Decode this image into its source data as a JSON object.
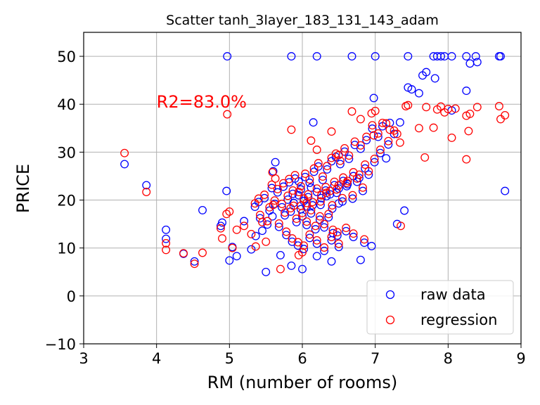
{
  "chart_data": {
    "type": "scatter",
    "title": "Scatter tanh_3layer_183_131_143_adam",
    "xlabel": "RM (number of rooms)",
    "ylabel": "PRICE",
    "xlim": [
      3,
      9
    ],
    "ylim": [
      -10,
      55
    ],
    "xticks": [
      3,
      4,
      5,
      6,
      7,
      8,
      9
    ],
    "yticks": [
      -10,
      0,
      10,
      20,
      30,
      40,
      50
    ],
    "grid": true,
    "legend_position": "bottom-right",
    "annotation": {
      "text": "R2=83.0%",
      "x": 4.0,
      "y": 40.5,
      "color": "#ff0000"
    },
    "series": [
      {
        "name": "raw data",
        "color": "#0000ff",
        "marker": "hollow-circle",
        "points": [
          [
            3.56,
            27.5
          ],
          [
            3.86,
            23.1
          ],
          [
            4.13,
            13.8
          ],
          [
            4.13,
            11.9
          ],
          [
            4.37,
            8.8
          ],
          [
            4.52,
            7.2
          ],
          [
            4.63,
            17.9
          ],
          [
            4.88,
            14.6
          ],
          [
            4.9,
            15.3
          ],
          [
            4.96,
            21.9
          ],
          [
            4.97,
            50.0
          ],
          [
            5.0,
            7.4
          ],
          [
            5.04,
            10.2
          ],
          [
            5.1,
            8.3
          ],
          [
            5.2,
            15.6
          ],
          [
            5.3,
            9.7
          ],
          [
            5.36,
            12.5
          ],
          [
            5.4,
            19.6
          ],
          [
            5.45,
            13.6
          ],
          [
            5.5,
            5.0
          ],
          [
            5.59,
            16.6
          ],
          [
            5.6,
            26.0
          ],
          [
            5.63,
            27.9
          ],
          [
            5.7,
            8.5
          ],
          [
            5.85,
            6.3
          ],
          [
            5.85,
            50.0
          ],
          [
            5.95,
            23.9
          ],
          [
            6.0,
            5.6
          ],
          [
            6.12,
            22.6
          ],
          [
            6.15,
            36.2
          ],
          [
            6.2,
            50.0
          ],
          [
            6.2,
            8.3
          ],
          [
            6.4,
            7.2
          ],
          [
            6.5,
            19.3
          ],
          [
            6.68,
            50.0
          ],
          [
            6.8,
            7.5
          ],
          [
            6.95,
            10.4
          ],
          [
            6.98,
            41.3
          ],
          [
            7.0,
            50.0
          ],
          [
            7.15,
            28.7
          ],
          [
            7.2,
            36.1
          ],
          [
            7.3,
            15.0
          ],
          [
            7.4,
            17.8
          ],
          [
            7.45,
            50.0
          ],
          [
            7.45,
            43.5
          ],
          [
            7.5,
            43.1
          ],
          [
            7.6,
            42.3
          ],
          [
            7.65,
            46.0
          ],
          [
            7.7,
            46.7
          ],
          [
            7.8,
            50.0
          ],
          [
            7.82,
            45.4
          ],
          [
            7.85,
            50.0
          ],
          [
            7.9,
            50.0
          ],
          [
            7.95,
            50.0
          ],
          [
            8.05,
            50.0
          ],
          [
            8.05,
            38.7
          ],
          [
            8.25,
            50.0
          ],
          [
            8.25,
            42.8
          ],
          [
            8.3,
            48.5
          ],
          [
            8.38,
            50.0
          ],
          [
            8.4,
            48.8
          ],
          [
            8.7,
            50.0
          ],
          [
            8.72,
            50.0
          ],
          [
            8.78,
            21.9
          ],
          [
            5.72,
            18.5
          ],
          [
            5.8,
            20.1
          ],
          [
            5.88,
            19.4
          ],
          [
            5.95,
            21.0
          ],
          [
            6.02,
            19.8
          ],
          [
            6.08,
            20.6
          ],
          [
            6.14,
            18.9
          ],
          [
            6.2,
            21.7
          ],
          [
            6.26,
            20.4
          ],
          [
            6.32,
            22.0
          ],
          [
            6.38,
            21.2
          ],
          [
            6.44,
            23.1
          ],
          [
            6.5,
            22.4
          ],
          [
            6.56,
            24.0
          ],
          [
            6.62,
            23.3
          ],
          [
            6.7,
            25.0
          ],
          [
            6.78,
            24.6
          ],
          [
            6.86,
            26.6
          ],
          [
            5.76,
            16.8
          ],
          [
            5.84,
            17.6
          ],
          [
            5.92,
            15.4
          ],
          [
            6.0,
            16.6
          ],
          [
            6.06,
            14.8
          ],
          [
            6.12,
            17.2
          ],
          [
            6.18,
            13.9
          ],
          [
            6.24,
            15.9
          ],
          [
            6.3,
            14.3
          ],
          [
            6.36,
            16.4
          ],
          [
            6.42,
            13.1
          ],
          [
            6.48,
            12.6
          ],
          [
            5.66,
            21.6
          ],
          [
            5.74,
            22.8
          ],
          [
            5.82,
            23.7
          ],
          [
            5.9,
            24.5
          ],
          [
            5.98,
            22.2
          ],
          [
            6.04,
            24.8
          ],
          [
            6.1,
            23.6
          ],
          [
            6.16,
            25.9
          ],
          [
            6.22,
            27.0
          ],
          [
            6.28,
            24.2
          ],
          [
            6.34,
            26.4
          ],
          [
            6.4,
            28.1
          ],
          [
            6.46,
            29.0
          ],
          [
            6.52,
            27.5
          ],
          [
            6.58,
            30.1
          ],
          [
            6.64,
            28.6
          ],
          [
            6.72,
            31.5
          ],
          [
            6.8,
            30.7
          ],
          [
            6.88,
            32.5
          ],
          [
            6.96,
            34.9
          ],
          [
            7.04,
            33.2
          ],
          [
            7.1,
            35.4
          ],
          [
            7.18,
            31.6
          ],
          [
            7.26,
            33.8
          ],
          [
            7.34,
            36.2
          ],
          [
            5.55,
            17.8
          ],
          [
            5.62,
            19.2
          ],
          [
            5.68,
            14.4
          ],
          [
            5.78,
            12.7
          ],
          [
            5.86,
            11.3
          ],
          [
            5.94,
            10.5
          ],
          [
            6.02,
            9.8
          ],
          [
            6.1,
            12.1
          ],
          [
            6.2,
            10.9
          ],
          [
            6.3,
            9.4
          ],
          [
            6.4,
            11.6
          ],
          [
            6.5,
            10.2
          ],
          [
            6.6,
            13.5
          ],
          [
            6.7,
            12.3
          ],
          [
            6.85,
            11.1
          ],
          [
            5.35,
            18.6
          ],
          [
            5.42,
            16.2
          ],
          [
            5.48,
            20.4
          ],
          [
            5.52,
            14.9
          ],
          [
            5.58,
            22.5
          ],
          [
            6.25,
            19.0
          ],
          [
            6.33,
            20.8
          ],
          [
            6.41,
            18.2
          ],
          [
            6.47,
            21.5
          ],
          [
            6.55,
            19.7
          ],
          [
            6.61,
            22.9
          ],
          [
            6.69,
            20.3
          ],
          [
            6.75,
            23.8
          ],
          [
            6.83,
            21.9
          ],
          [
            6.91,
            25.3
          ],
          [
            6.99,
            27.9
          ],
          [
            7.07,
            29.8
          ],
          [
            5.98,
            18.1
          ],
          [
            6.06,
            18.7
          ],
          [
            5.87,
            21.3
          ]
        ]
      },
      {
        "name": "regression",
        "color": "#ff0000",
        "marker": "hollow-circle",
        "points": [
          [
            3.56,
            29.8
          ],
          [
            3.86,
            21.7
          ],
          [
            4.13,
            11.0
          ],
          [
            4.13,
            9.6
          ],
          [
            4.37,
            8.9
          ],
          [
            4.52,
            6.7
          ],
          [
            4.63,
            9.0
          ],
          [
            4.88,
            14.1
          ],
          [
            4.9,
            12.0
          ],
          [
            4.96,
            17.1
          ],
          [
            4.97,
            37.9
          ],
          [
            5.0,
            17.6
          ],
          [
            5.04,
            10.0
          ],
          [
            5.1,
            13.8
          ],
          [
            5.2,
            14.6
          ],
          [
            5.3,
            12.9
          ],
          [
            5.36,
            10.3
          ],
          [
            5.4,
            20.3
          ],
          [
            5.45,
            15.4
          ],
          [
            5.5,
            11.3
          ],
          [
            5.59,
            25.8
          ],
          [
            5.6,
            19.0
          ],
          [
            5.63,
            24.5
          ],
          [
            5.7,
            5.6
          ],
          [
            5.85,
            34.7
          ],
          [
            5.95,
            8.5
          ],
          [
            6.0,
            9.1
          ],
          [
            6.12,
            32.4
          ],
          [
            6.2,
            30.5
          ],
          [
            6.4,
            34.3
          ],
          [
            6.5,
            29.4
          ],
          [
            6.68,
            38.5
          ],
          [
            6.8,
            36.9
          ],
          [
            6.95,
            38.1
          ],
          [
            6.98,
            33.5
          ],
          [
            7.0,
            38.6
          ],
          [
            7.15,
            36.0
          ],
          [
            7.2,
            34.7
          ],
          [
            7.3,
            33.8
          ],
          [
            7.35,
            14.6
          ],
          [
            7.42,
            39.6
          ],
          [
            7.45,
            39.8
          ],
          [
            7.6,
            35.0
          ],
          [
            7.68,
            28.9
          ],
          [
            7.7,
            39.4
          ],
          [
            7.8,
            35.1
          ],
          [
            7.85,
            38.9
          ],
          [
            7.9,
            39.5
          ],
          [
            7.95,
            38.3
          ],
          [
            8.0,
            39.0
          ],
          [
            8.05,
            33.0
          ],
          [
            8.1,
            39.1
          ],
          [
            8.25,
            37.6
          ],
          [
            8.28,
            34.4
          ],
          [
            8.3,
            38.0
          ],
          [
            8.4,
            39.4
          ],
          [
            8.7,
            39.6
          ],
          [
            8.72,
            36.9
          ],
          [
            8.78,
            37.7
          ],
          [
            8.25,
            28.5
          ],
          [
            5.72,
            19.2
          ],
          [
            5.8,
            20.9
          ],
          [
            5.88,
            18.8
          ],
          [
            5.95,
            21.7
          ],
          [
            6.02,
            20.3
          ],
          [
            6.08,
            21.2
          ],
          [
            6.14,
            19.6
          ],
          [
            6.2,
            22.4
          ],
          [
            6.26,
            21.0
          ],
          [
            6.32,
            22.7
          ],
          [
            6.38,
            21.9
          ],
          [
            6.44,
            23.8
          ],
          [
            6.5,
            23.1
          ],
          [
            6.56,
            24.7
          ],
          [
            6.62,
            24.0
          ],
          [
            6.7,
            25.8
          ],
          [
            6.78,
            25.3
          ],
          [
            6.86,
            27.4
          ],
          [
            5.76,
            17.4
          ],
          [
            5.84,
            18.3
          ],
          [
            5.92,
            16.1
          ],
          [
            6.0,
            17.3
          ],
          [
            6.06,
            15.5
          ],
          [
            6.12,
            17.9
          ],
          [
            6.18,
            14.6
          ],
          [
            6.24,
            16.6
          ],
          [
            6.3,
            15.0
          ],
          [
            6.36,
            17.1
          ],
          [
            6.42,
            13.8
          ],
          [
            6.48,
            13.3
          ],
          [
            5.66,
            22.3
          ],
          [
            5.74,
            23.5
          ],
          [
            5.82,
            24.4
          ],
          [
            5.9,
            25.2
          ],
          [
            5.98,
            22.9
          ],
          [
            6.04,
            25.5
          ],
          [
            6.1,
            24.3
          ],
          [
            6.16,
            26.6
          ],
          [
            6.22,
            27.7
          ],
          [
            6.28,
            24.9
          ],
          [
            6.34,
            27.1
          ],
          [
            6.4,
            28.8
          ],
          [
            6.46,
            29.7
          ],
          [
            6.52,
            28.2
          ],
          [
            6.58,
            30.8
          ],
          [
            6.64,
            29.3
          ],
          [
            6.72,
            32.2
          ],
          [
            6.8,
            31.4
          ],
          [
            6.88,
            33.2
          ],
          [
            6.96,
            35.6
          ],
          [
            7.04,
            33.9
          ],
          [
            7.1,
            36.1
          ],
          [
            7.18,
            32.3
          ],
          [
            7.26,
            34.5
          ],
          [
            7.34,
            32.0
          ],
          [
            5.55,
            18.5
          ],
          [
            5.62,
            19.9
          ],
          [
            5.68,
            15.1
          ],
          [
            5.78,
            13.4
          ],
          [
            5.86,
            12.0
          ],
          [
            5.94,
            11.2
          ],
          [
            6.02,
            10.5
          ],
          [
            6.1,
            12.8
          ],
          [
            6.2,
            11.6
          ],
          [
            6.3,
            10.1
          ],
          [
            6.4,
            12.3
          ],
          [
            6.5,
            10.9
          ],
          [
            6.6,
            14.2
          ],
          [
            6.7,
            13.0
          ],
          [
            6.85,
            11.8
          ],
          [
            5.35,
            19.3
          ],
          [
            5.42,
            16.9
          ],
          [
            5.48,
            21.1
          ],
          [
            5.52,
            15.6
          ],
          [
            5.58,
            23.2
          ],
          [
            6.25,
            19.7
          ],
          [
            6.33,
            21.5
          ],
          [
            6.41,
            18.9
          ],
          [
            6.47,
            22.2
          ],
          [
            6.55,
            20.4
          ],
          [
            6.61,
            23.6
          ],
          [
            6.69,
            21.0
          ],
          [
            6.75,
            24.5
          ],
          [
            6.83,
            22.6
          ],
          [
            6.91,
            26.0
          ],
          [
            6.99,
            28.6
          ],
          [
            7.07,
            30.5
          ],
          [
            5.98,
            18.8
          ],
          [
            6.06,
            19.4
          ],
          [
            5.87,
            22.0
          ]
        ]
      }
    ]
  }
}
